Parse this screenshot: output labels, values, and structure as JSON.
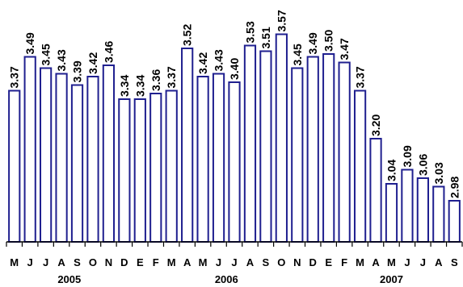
{
  "chart_data": {
    "type": "bar",
    "categories": [
      "M",
      "J",
      "J",
      "A",
      "S",
      "O",
      "N",
      "D",
      "E",
      "F",
      "M",
      "A",
      "M",
      "J",
      "J",
      "A",
      "S",
      "O",
      "N",
      "D",
      "E",
      "F",
      "M",
      "A",
      "M",
      "J",
      "J",
      "A",
      "S"
    ],
    "values": [
      3.37,
      3.49,
      3.45,
      3.43,
      3.39,
      3.42,
      3.46,
      3.34,
      3.34,
      3.36,
      3.37,
      3.52,
      3.42,
      3.43,
      3.4,
      3.53,
      3.51,
      3.57,
      3.45,
      3.49,
      3.5,
      3.47,
      3.37,
      3.2,
      3.04,
      3.09,
      3.06,
      3.03,
      2.98
    ],
    "value_labels": [
      "3.37",
      "3.49",
      "3.45",
      "3.43",
      "3.39",
      "3.42",
      "3.46",
      "3.34",
      "3.34",
      "3.36",
      "3.37",
      "3.52",
      "3.42",
      "3.43",
      "3.40",
      "3.53",
      "3.51",
      "3.57",
      "3.45",
      "3.49",
      "3.50",
      "3.47",
      "3.37",
      "3.20",
      "3.04",
      "3.09",
      "3.06",
      "3.03",
      "2.98"
    ],
    "years": [
      {
        "label": "2005",
        "from": 0,
        "to": 7
      },
      {
        "label": "2006",
        "from": 8,
        "to": 19
      },
      {
        "label": "2007",
        "from": 20,
        "to": 28
      }
    ],
    "ylim": [
      2.6,
      3.6
    ],
    "grid": false,
    "colors": {
      "bar_stroke": "#1f1f8f",
      "bar_fill": "#ffffff",
      "axis": "#000000"
    }
  }
}
